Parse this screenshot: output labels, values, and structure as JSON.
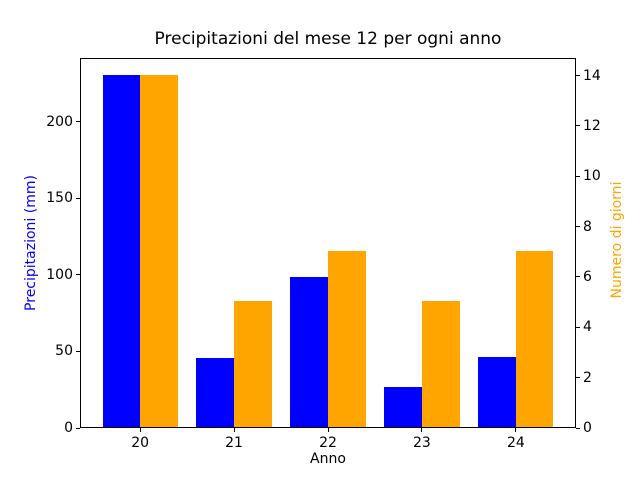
{
  "title": "Precipitazioni del mese 12 per ogni anno",
  "chart_data": {
    "type": "bar",
    "title": "Precipitazioni del mese 12 per ogni anno",
    "categories": [
      "20",
      "21",
      "22",
      "23",
      "24"
    ],
    "series": [
      {
        "key": "precipitazioni",
        "name": "Precipitazioni (mm)",
        "axis": "left",
        "color": "#0000ff",
        "values": [
          230,
          45,
          98,
          26,
          46
        ]
      },
      {
        "key": "giorni",
        "name": "Numero di giorni",
        "axis": "right",
        "color": "#ffa500",
        "values": [
          14,
          5,
          7,
          5,
          7
        ]
      }
    ],
    "xlabel": "Anno",
    "ylabel_left": "Precipitazioni (mm)",
    "ylabel_right": "Numero di giorni",
    "ylabel_left_color": "#0000ff",
    "ylabel_right_color": "#ffa500",
    "ylim_left": [
      0,
      241.5
    ],
    "ylim_right": [
      0,
      14.7
    ],
    "yticks_left": [
      0,
      50,
      100,
      150,
      200
    ],
    "yticks_right": [
      0,
      2,
      4,
      6,
      8,
      10,
      12,
      14
    ],
    "xlim": [
      -0.64,
      4.64
    ],
    "bar_width": 0.4,
    "grid": false,
    "legend": "none",
    "background": "#ffffff",
    "spine_color": "#000000"
  }
}
